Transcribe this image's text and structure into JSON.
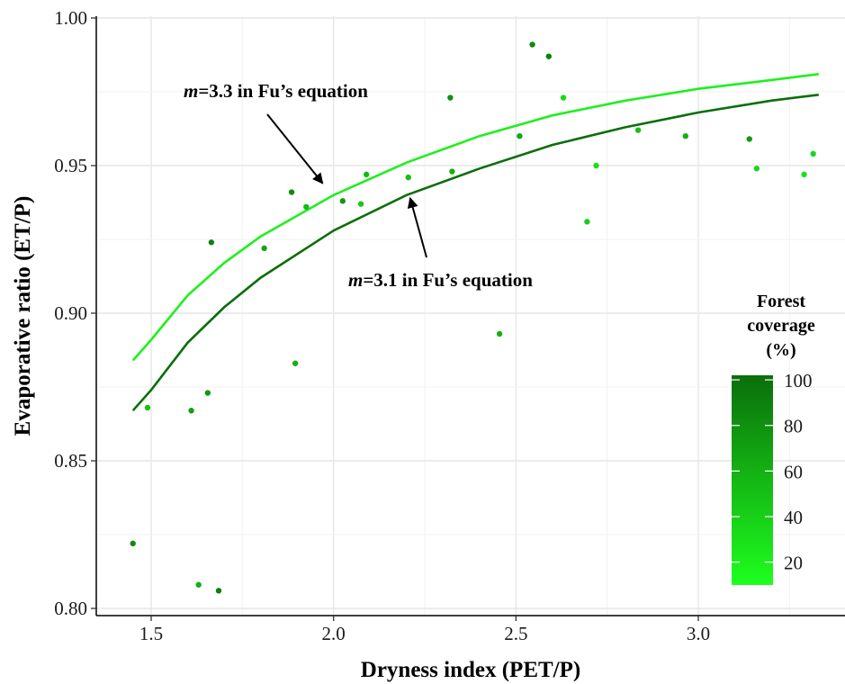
{
  "chart_data": {
    "type": "scatter",
    "xlabel": "Dryness index (PET/P)",
    "ylabel": "Evaporative ratio (ET/P)",
    "xlim": [
      1.4,
      3.4
    ],
    "ylim": [
      0.797,
      1.0
    ],
    "xticks": [
      1.5,
      2.0,
      2.5,
      3.0
    ],
    "xtick_labels": [
      "1.5",
      "2.0",
      "2.5",
      "3.0"
    ],
    "yticks": [
      0.8,
      0.85,
      0.9,
      0.95,
      1.0
    ],
    "ytick_labels": [
      "0.80",
      "0.85",
      "0.90",
      "0.95",
      "1.00"
    ],
    "grid": true,
    "points": [
      {
        "x": 1.45,
        "y": 0.822,
        "forest": 85
      },
      {
        "x": 1.49,
        "y": 0.868,
        "forest": 50
      },
      {
        "x": 1.61,
        "y": 0.867,
        "forest": 70
      },
      {
        "x": 1.63,
        "y": 0.808,
        "forest": 60
      },
      {
        "x": 1.655,
        "y": 0.873,
        "forest": 75
      },
      {
        "x": 1.665,
        "y": 0.924,
        "forest": 90
      },
      {
        "x": 1.685,
        "y": 0.806,
        "forest": 90
      },
      {
        "x": 1.81,
        "y": 0.922,
        "forest": 65
      },
      {
        "x": 1.885,
        "y": 0.941,
        "forest": 85
      },
      {
        "x": 1.895,
        "y": 0.883,
        "forest": 60
      },
      {
        "x": 1.925,
        "y": 0.936,
        "forest": 55
      },
      {
        "x": 2.025,
        "y": 0.938,
        "forest": 75
      },
      {
        "x": 2.075,
        "y": 0.937,
        "forest": 45
      },
      {
        "x": 2.09,
        "y": 0.947,
        "forest": 55
      },
      {
        "x": 2.205,
        "y": 0.946,
        "forest": 50
      },
      {
        "x": 2.32,
        "y": 0.973,
        "forest": 80
      },
      {
        "x": 2.325,
        "y": 0.948,
        "forest": 60
      },
      {
        "x": 2.455,
        "y": 0.893,
        "forest": 60
      },
      {
        "x": 2.51,
        "y": 0.96,
        "forest": 65
      },
      {
        "x": 2.545,
        "y": 0.991,
        "forest": 85
      },
      {
        "x": 2.59,
        "y": 0.987,
        "forest": 90
      },
      {
        "x": 2.63,
        "y": 0.973,
        "forest": 35
      },
      {
        "x": 2.695,
        "y": 0.931,
        "forest": 40
      },
      {
        "x": 2.72,
        "y": 0.95,
        "forest": 30
      },
      {
        "x": 2.835,
        "y": 0.962,
        "forest": 50
      },
      {
        "x": 2.965,
        "y": 0.96,
        "forest": 60
      },
      {
        "x": 3.14,
        "y": 0.959,
        "forest": 75
      },
      {
        "x": 3.16,
        "y": 0.949,
        "forest": 35
      },
      {
        "x": 3.29,
        "y": 0.947,
        "forest": 30
      },
      {
        "x": 3.315,
        "y": 0.954,
        "forest": 35
      }
    ],
    "series": [
      {
        "line_color": "#1ef01e",
        "x": [
          1.45,
          1.5,
          1.6,
          1.7,
          1.8,
          2.0,
          2.2,
          2.4,
          2.6,
          2.8,
          3.0,
          3.2,
          3.33
        ],
        "y": [
          0.884,
          0.891,
          0.906,
          0.917,
          0.926,
          0.94,
          0.951,
          0.96,
          0.967,
          0.972,
          0.976,
          0.979,
          0.981
        ]
      },
      {
        "line_color": "#0b6e0b",
        "x": [
          1.45,
          1.5,
          1.6,
          1.7,
          1.8,
          2.0,
          2.2,
          2.4,
          2.6,
          2.8,
          3.0,
          3.2,
          3.33
        ],
        "y": [
          0.867,
          0.874,
          0.89,
          0.902,
          0.912,
          0.928,
          0.94,
          0.949,
          0.957,
          0.963,
          0.968,
          0.972,
          0.974
        ]
      }
    ],
    "annotations": [
      {
        "italic": "m",
        "text": "=3.3 in Fu’s equation",
        "arrow_to_x": 1.97,
        "arrow_to_y": 0.944
      },
      {
        "italic": "m",
        "text": "=3.1 in Fu’s equation",
        "arrow_to_x": 2.21,
        "arrow_to_y": 0.939
      }
    ],
    "legend": {
      "title_lines": [
        "Forest",
        "coverage",
        "(%)"
      ],
      "position": "right-inside",
      "range": [
        10,
        102
      ],
      "ticks": [
        20,
        40,
        60,
        80,
        100
      ],
      "tick_labels": [
        "20",
        "40",
        "60",
        "80",
        "100"
      ],
      "color_low": "#1eff1e",
      "color_high": "#0b6e0b"
    }
  }
}
